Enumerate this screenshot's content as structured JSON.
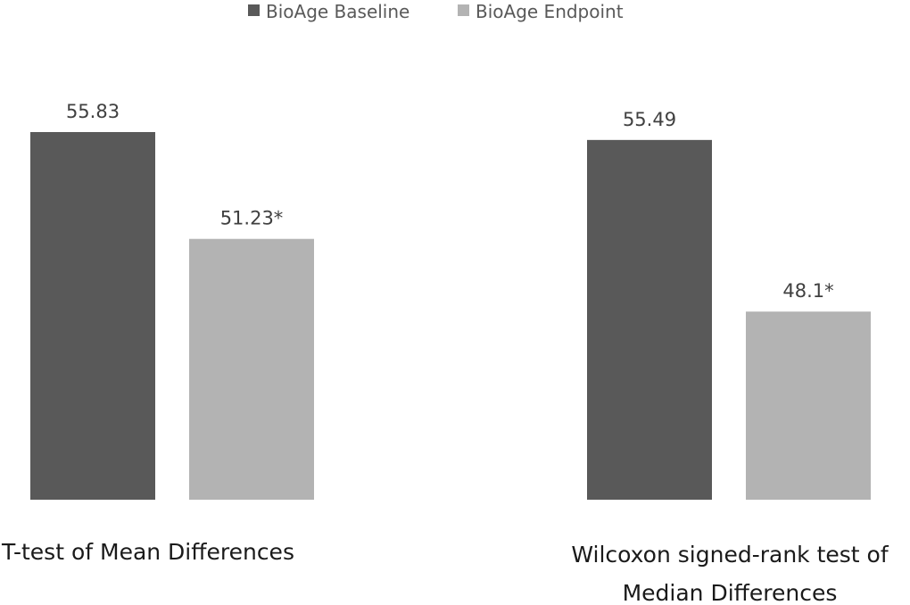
{
  "chart_data": {
    "type": "bar",
    "categories": [
      [
        "T-test of Mean Differences"
      ],
      [
        "Wilcoxon signed-rank test of",
        "Median Differences"
      ]
    ],
    "series": [
      {
        "name": "BioAge Baseline",
        "color": "#595959",
        "values": [
          55.83,
          55.49
        ],
        "labels": [
          "55.83",
          "55.49"
        ]
      },
      {
        "name": "BioAge Endpoint",
        "color": "#b3b3b3",
        "values": [
          51.23,
          48.1
        ],
        "labels": [
          "51.23*",
          "48.1*"
        ]
      }
    ],
    "ylim": [
      40,
      57
    ],
    "legend_position": "top",
    "grid": false,
    "axes_visible": false
  }
}
